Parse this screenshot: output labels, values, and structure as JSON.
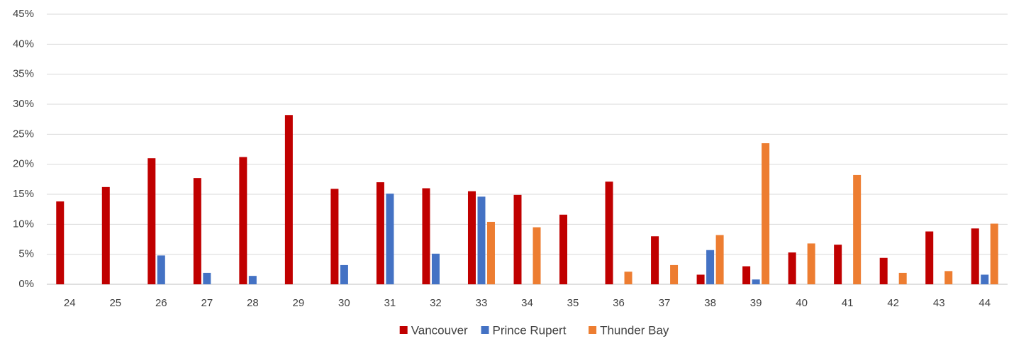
{
  "chart_data": {
    "type": "bar",
    "categories": [
      "24",
      "25",
      "26",
      "27",
      "28",
      "29",
      "30",
      "31",
      "32",
      "33",
      "34",
      "35",
      "36",
      "37",
      "38",
      "39",
      "40",
      "41",
      "42",
      "43",
      "44"
    ],
    "series": [
      {
        "name": "Vancouver",
        "color": "#c00000",
        "values": [
          13.8,
          16.2,
          21,
          17.7,
          21.2,
          28.2,
          15.9,
          17,
          16,
          15.5,
          14.9,
          11.6,
          17.1,
          8,
          1.6,
          3,
          5.3,
          6.6,
          4.4,
          8.8,
          9.3
        ]
      },
      {
        "name": "Prince Rupert",
        "color": "#4472c4",
        "values": [
          0,
          0,
          4.8,
          1.9,
          1.4,
          0,
          3.2,
          15.1,
          5.1,
          14.6,
          0,
          0,
          0,
          0,
          5.7,
          0.8,
          0,
          0,
          0,
          0,
          1.6
        ]
      },
      {
        "name": "Thunder Bay",
        "color": "#ed7d31",
        "values": [
          0,
          0,
          0,
          0,
          0,
          0,
          0,
          0,
          0,
          10.4,
          9.5,
          0,
          2.1,
          3.2,
          8.2,
          23.5,
          6.8,
          18.2,
          1.9,
          2.2,
          10.1
        ]
      }
    ],
    "ylim": [
      0,
      45
    ],
    "yticks": [
      {
        "value": 0,
        "label": "0%"
      },
      {
        "value": 5,
        "label": "5%"
      },
      {
        "value": 10,
        "label": "10%"
      },
      {
        "value": 15,
        "label": "15%"
      },
      {
        "value": 20,
        "label": "20%"
      },
      {
        "value": 25,
        "label": "25%"
      },
      {
        "value": 30,
        "label": "30%"
      },
      {
        "value": 35,
        "label": "35%"
      },
      {
        "value": 40,
        "label": "40%"
      },
      {
        "value": 45,
        "label": "45%"
      }
    ],
    "grid": true,
    "legend": "bottom"
  }
}
